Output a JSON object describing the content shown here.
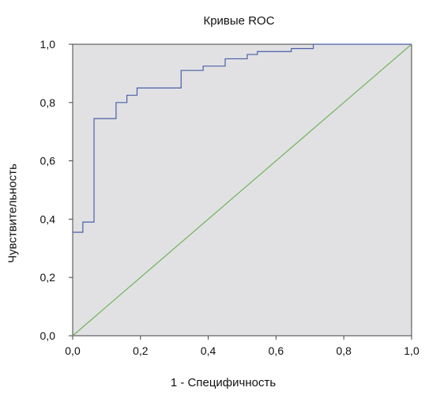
{
  "chart_data": {
    "type": "line",
    "title": "Кривые ROC",
    "xlabel": "1 - Специфичность",
    "ylabel": "Чувствительность",
    "xlim": [
      0,
      1
    ],
    "ylim": [
      0,
      1
    ],
    "x_ticks": [
      "0,0",
      "0,2",
      "0,4",
      "0,6",
      "0,8",
      "1,0"
    ],
    "y_ticks": [
      "0,0",
      "0,2",
      "0,4",
      "0,6",
      "0,8",
      "1,0"
    ],
    "grid": false,
    "plot_background": "#e1e1e3",
    "series": [
      {
        "color": "#4a5fa8",
        "step": true,
        "points": [
          [
            0.0,
            0.355
          ],
          [
            0.03,
            0.355
          ],
          [
            0.03,
            0.39
          ],
          [
            0.063,
            0.39
          ],
          [
            0.063,
            0.745
          ],
          [
            0.128,
            0.745
          ],
          [
            0.128,
            0.8
          ],
          [
            0.16,
            0.8
          ],
          [
            0.16,
            0.825
          ],
          [
            0.19,
            0.825
          ],
          [
            0.19,
            0.85
          ],
          [
            0.32,
            0.85
          ],
          [
            0.32,
            0.91
          ],
          [
            0.385,
            0.91
          ],
          [
            0.385,
            0.925
          ],
          [
            0.45,
            0.925
          ],
          [
            0.45,
            0.95
          ],
          [
            0.515,
            0.95
          ],
          [
            0.515,
            0.965
          ],
          [
            0.545,
            0.965
          ],
          [
            0.545,
            0.975
          ],
          [
            0.645,
            0.975
          ],
          [
            0.645,
            0.985
          ],
          [
            0.71,
            0.985
          ],
          [
            0.71,
            1.0
          ],
          [
            1.0,
            1.0
          ]
        ]
      },
      {
        "color": "#72b35c",
        "step": false,
        "points": [
          [
            0.0,
            0.0
          ],
          [
            1.0,
            1.0
          ]
        ]
      }
    ]
  }
}
